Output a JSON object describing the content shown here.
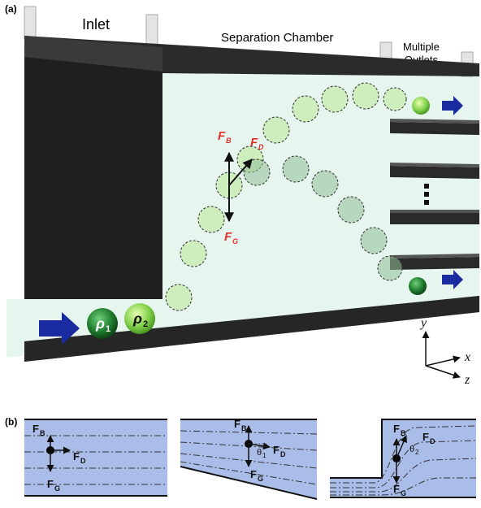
{
  "panel_a": {
    "tag": "(a)",
    "inlet_label": "Inlet",
    "chamber_label": "Separation Chamber",
    "outlets_label_line1": "Multiple",
    "outlets_label_line2": "Outlets",
    "force_labels": {
      "buoyancy": "F",
      "buoyancy_sub": "B",
      "drag": "F",
      "drag_sub": "D",
      "gravity": "F",
      "gravity_sub": "G"
    },
    "particles": [
      {
        "symbol": "ρ",
        "subscript": "1",
        "color": "#1e7a2c"
      },
      {
        "symbol": "ρ",
        "subscript": "2",
        "color": "#7fd04a"
      }
    ],
    "axes": {
      "y": "y",
      "x": "x",
      "z": "z"
    },
    "colors": {
      "wall": "#2b2b2b",
      "fluid": "#e6f6ef",
      "arrow": "#1a2aa0",
      "force_label": "#e0302a"
    }
  },
  "panel_b": {
    "tag": "(b)",
    "cases": [
      {
        "fb": "F",
        "fb_sub": "B",
        "fd": "F",
        "fd_sub": "D",
        "fg": "F",
        "fg_sub": "G",
        "angle": ""
      },
      {
        "fb": "F",
        "fb_sub": "B",
        "fd": "F",
        "fd_sub": "D",
        "fg": "F",
        "fg_sub": "G",
        "angle": "θ",
        "angle_sub": "1"
      },
      {
        "fb": "F",
        "fb_sub": "B",
        "fd": "F",
        "fd_sub": "D",
        "fg": "F",
        "fg_sub": "G",
        "angle": "θ",
        "angle_sub": "2"
      }
    ],
    "colors": {
      "channel": "#a9bde8"
    }
  }
}
